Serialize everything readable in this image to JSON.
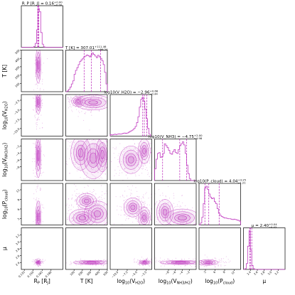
{
  "accent_color": "#c13cc1",
  "fill_color": "#d68ad6",
  "chart_data": {
    "type": "corner",
    "parameters": [
      {
        "key": "rp",
        "label": "R_P [R_J]",
        "axis_label_base": "R",
        "axis_label_sub": "P",
        "axis_label_rest": " [R",
        "axis_label_sub2": "J",
        "axis_label_end": "]",
        "title": "R_P [R_J] = 0.16",
        "title_sup": "+0.00",
        "title_sub": "−0.00",
        "range": [
          0.13,
          0.2
        ],
        "ticks": [
          0.135,
          0.15,
          0.165,
          0.18
        ],
        "tick_labels": [
          "0.135",
          "0.150",
          "0.165",
          "0.180"
        ],
        "median": 0.1585,
        "q16": 0.1575,
        "q84": 0.1595
      },
      {
        "key": "T",
        "label": "T [K]",
        "axis_label_base": "T [K]",
        "title": "T [K] = 307.01",
        "title_sup": "+111.46",
        "title_sub": "−86.24",
        "range": [
          0,
          500
        ],
        "ticks": [
          100,
          200,
          300,
          400,
          500
        ],
        "tick_labels": [
          "100",
          "200",
          "300",
          "400",
          "500"
        ],
        "median": 307,
        "q16": 221,
        "q84": 418
      },
      {
        "key": "h2o",
        "label": "log10(V_H2O)",
        "axis_label_base": "log",
        "axis_label_sub": "10",
        "axis_label_rest": "(V",
        "axis_label_sub2": "H2O",
        "axis_label_end": ")",
        "title": "log10(V_H2O) = −2.96",
        "title_sup": "+0.66",
        "title_sub": "−0.44",
        "range": [
          -12,
          -1
        ],
        "ticks": [
          -10,
          -7.5,
          -5,
          -2.5
        ],
        "tick_labels": [
          "−10.0",
          "−7.5",
          "−5.0",
          "−2.5"
        ],
        "median": -2.96,
        "q16": -3.4,
        "q84": -2.3
      },
      {
        "key": "nh3",
        "label": "log10(V_NH3/H2)",
        "axis_label_base": "log",
        "axis_label_sub": "10",
        "axis_label_rest": "(V",
        "axis_label_sub2": "NH3/H2",
        "axis_label_end": ")",
        "title": "log10(V_NH3) = −4.75",
        "title_sup": "+2.00",
        "title_sub": "−4.98",
        "range": [
          -12,
          0
        ],
        "ticks": [
          -8,
          -6,
          -4,
          -2
        ],
        "tick_labels": [
          "−8",
          "−6",
          "−4",
          "−2"
        ],
        "median": -4.75,
        "q16": -9.7,
        "q84": -2.75
      },
      {
        "key": "pc",
        "label": "log10(P_cloud)",
        "axis_label_base": "log",
        "axis_label_sub": "10",
        "axis_label_rest": "(P",
        "axis_label_sub2": "cloud",
        "axis_label_end": ")",
        "title": "log10(P_cloud) = 4.04",
        "title_sup": "+3.25",
        "title_sub": "−1.21",
        "range": [
          1,
          14
        ],
        "ticks": [
          3,
          6,
          9,
          12
        ],
        "tick_labels": [
          "3",
          "6",
          "9",
          "12"
        ],
        "median": 4.04,
        "q16": 2.83,
        "q84": 7.29
      },
      {
        "key": "mu",
        "label": "μ",
        "axis_label_base": "μ",
        "title": "μ = 2.40",
        "title_sup": "+0.04",
        "title_sub": "−0.02",
        "range": [
          2.2,
          3.4
        ],
        "ticks": [
          2.4,
          2.6,
          2.8,
          3.0,
          3.2
        ],
        "tick_labels": [
          "2.4",
          "2.6",
          "2.8",
          "3.0",
          "3.2"
        ],
        "median": 2.4,
        "q16": 2.38,
        "q84": 2.44
      }
    ],
    "histograms": {
      "rp": [
        0,
        0,
        0,
        0,
        0,
        0,
        0,
        0,
        0,
        0.02,
        0.1,
        0.45,
        1.0,
        0.92,
        0.38,
        0.08,
        0.01,
        0,
        0,
        0,
        0,
        0,
        0,
        0,
        0,
        0,
        0,
        0,
        0,
        0
      ],
      "T": [
        0.0,
        0.02,
        0.06,
        0.12,
        0.2,
        0.28,
        0.45,
        0.55,
        0.62,
        0.7,
        0.78,
        0.82,
        0.86,
        0.9,
        0.92,
        0.95,
        0.93,
        0.9,
        0.94,
        1.0,
        0.96,
        0.92,
        0.88,
        0.94,
        0.9,
        0.86,
        0.8,
        0.7,
        0.5,
        0.2
      ],
      "h2o": [
        0.04,
        0.03,
        0.04,
        0.05,
        0.04,
        0.05,
        0.06,
        0.05,
        0.06,
        0.07,
        0.08,
        0.07,
        0.08,
        0.1,
        0.12,
        0.14,
        0.16,
        0.2,
        0.25,
        0.35,
        0.5,
        0.75,
        0.95,
        1.0,
        0.9,
        0.7,
        0.45,
        0.2,
        0.05,
        0.0
      ],
      "nh3": [
        0.3,
        0.55,
        0.7,
        0.72,
        0.6,
        0.62,
        0.7,
        0.95,
        0.9,
        0.85,
        0.78,
        0.7,
        0.68,
        0.75,
        0.8,
        0.72,
        0.7,
        0.8,
        0.9,
        0.95,
        1.0,
        0.92,
        0.7,
        0.4,
        0.18,
        0.05,
        0.0,
        0.0,
        0.0,
        0.0
      ],
      "pc": [
        0.0,
        0.05,
        0.2,
        0.55,
        0.95,
        1.0,
        0.92,
        0.8,
        0.72,
        0.68,
        0.7,
        0.6,
        0.55,
        0.42,
        0.3,
        0.25,
        0.22,
        0.2,
        0.18,
        0.18,
        0.17,
        0.16,
        0.16,
        0.15,
        0.14,
        0.15,
        0.14,
        0.13,
        0.12,
        0.1
      ],
      "mu": [
        0,
        0.02,
        0.15,
        0.6,
        1.0,
        0.5,
        0.1,
        0.02,
        0,
        0,
        0,
        0,
        0,
        0,
        0,
        0,
        0,
        0,
        0,
        0,
        0,
        0,
        0,
        0,
        0,
        0,
        0,
        0,
        0,
        0
      ]
    },
    "contours": [
      {
        "row": 1,
        "col": 0,
        "blobs": [
          {
            "cx": 0.1585,
            "cy": 320,
            "sx": 0.0022,
            "sy": 110
          }
        ]
      },
      {
        "row": 2,
        "col": 0,
        "blobs": [
          {
            "cx": 0.1585,
            "cy": -3.0,
            "sx": 0.0022,
            "sy": 1.6
          }
        ]
      },
      {
        "row": 2,
        "col": 1,
        "blobs": [
          {
            "cx": 330,
            "cy": -3.1,
            "sx": 110,
            "sy": 1.0
          },
          {
            "cx": 150,
            "cy": -2.8,
            "sx": 40,
            "sy": 0.7
          }
        ]
      },
      {
        "row": 3,
        "col": 0,
        "blobs": [
          {
            "cx": 0.1585,
            "cy": -4.8,
            "sx": 0.0022,
            "sy": 3.2
          }
        ]
      },
      {
        "row": 3,
        "col": 1,
        "blobs": [
          {
            "cx": 180,
            "cy": -4.0,
            "sx": 60,
            "sy": 2.5
          },
          {
            "cx": 330,
            "cy": -5.5,
            "sx": 80,
            "sy": 3.0
          },
          {
            "cx": 440,
            "cy": -4.5,
            "sx": 40,
            "sy": 2.5
          }
        ]
      },
      {
        "row": 3,
        "col": 2,
        "blobs": [
          {
            "cx": -3.0,
            "cy": -3.5,
            "sx": 0.8,
            "sy": 1.8
          },
          {
            "cx": -6.5,
            "cy": -6.0,
            "sx": 1.5,
            "sy": 2.0
          }
        ]
      },
      {
        "row": 4,
        "col": 0,
        "blobs": [
          {
            "cx": 0.1585,
            "cy": 3.5,
            "sx": 0.0022,
            "sy": 2.5
          }
        ]
      },
      {
        "row": 4,
        "col": 1,
        "blobs": [
          {
            "cx": 200,
            "cy": 3.2,
            "sx": 80,
            "sy": 1.4
          },
          {
            "cx": 380,
            "cy": 4.5,
            "sx": 80,
            "sy": 2.0
          },
          {
            "cx": 250,
            "cy": 8.5,
            "sx": 60,
            "sy": 1.2
          }
        ]
      },
      {
        "row": 4,
        "col": 2,
        "blobs": [
          {
            "cx": -3.0,
            "cy": 3.4,
            "sx": 0.8,
            "sy": 1.6
          },
          {
            "cx": -6.0,
            "cy": 6.5,
            "sx": 1.2,
            "sy": 1.5
          }
        ]
      },
      {
        "row": 4,
        "col": 3,
        "blobs": [
          {
            "cx": -4.0,
            "cy": 3.2,
            "sx": 2.5,
            "sy": 1.4
          },
          {
            "cx": -9.0,
            "cy": 5.0,
            "sx": 1.2,
            "sy": 2.0
          }
        ]
      },
      {
        "row": 5,
        "col": 0,
        "blobs": [
          {
            "cx": 0.1585,
            "cy": 2.4,
            "sx": 0.0022,
            "sy": 0.03
          }
        ]
      },
      {
        "row": 5,
        "col": 1,
        "blobs": [
          {
            "cx": 310,
            "cy": 2.4,
            "sx": 110,
            "sy": 0.03
          }
        ]
      },
      {
        "row": 5,
        "col": 2,
        "blobs": [
          {
            "cx": -2.9,
            "cy": 2.4,
            "sx": 0.7,
            "sy": 0.03
          }
        ]
      },
      {
        "row": 5,
        "col": 3,
        "blobs": [
          {
            "cx": -4.5,
            "cy": 2.4,
            "sx": 3.0,
            "sy": 0.03
          }
        ]
      },
      {
        "row": 5,
        "col": 4,
        "blobs": [
          {
            "cx": 3.8,
            "cy": 2.4,
            "sx": 1.6,
            "sy": 0.04
          }
        ]
      }
    ]
  }
}
